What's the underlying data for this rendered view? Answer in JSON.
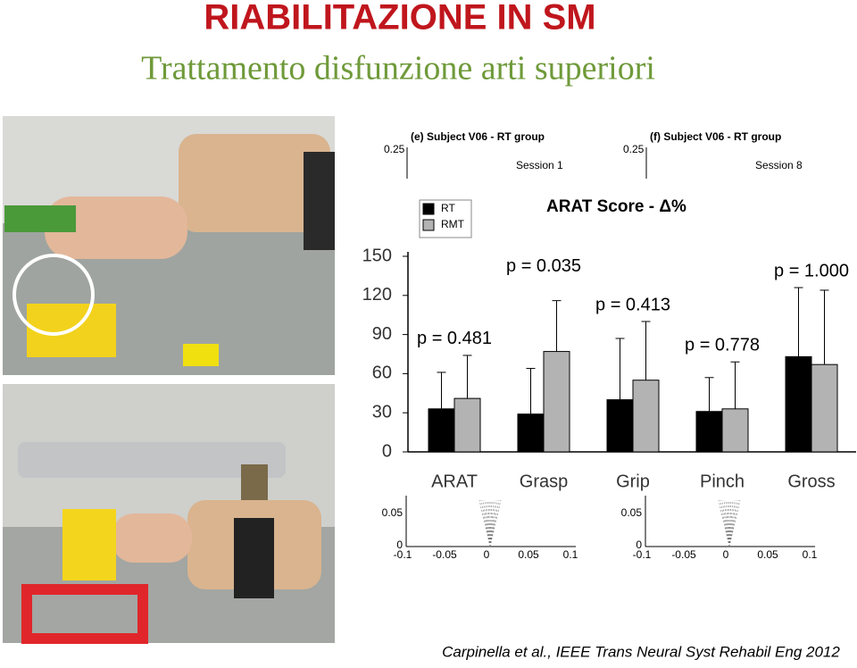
{
  "header": {
    "title": "RIABILITAZIONE IN SM",
    "subtitle": "Trattamento disfunzione arti superiori"
  },
  "background_plots": [
    {
      "title": "(e) Subject V06 - RT group",
      "label": "Session 1",
      "ytick": "0.25"
    },
    {
      "title": "(f) Subject V06 - RT group",
      "label": "Session 8",
      "ytick": "0.25"
    }
  ],
  "inset_axes": [
    {
      "yticks": [
        "0.05",
        "0"
      ],
      "xticks": [
        "-0.1",
        "-0.05",
        "0",
        "0.05",
        "0.1"
      ]
    },
    {
      "yticks": [
        "0.05",
        "0"
      ],
      "xticks": [
        "-0.1",
        "-0.05",
        "0",
        "0.05",
        "0.1"
      ]
    }
  ],
  "chart_data": {
    "type": "bar",
    "title": "ARAT Score - Δ%",
    "categories": [
      "ARAT",
      "Grasp",
      "Grip",
      "Pinch",
      "Gross"
    ],
    "series": [
      {
        "name": "RT",
        "color": "#000000",
        "values": [
          33,
          29,
          40,
          31,
          73
        ],
        "errors": [
          28,
          35,
          47,
          26,
          53
        ]
      },
      {
        "name": "RMT",
        "color": "#b3b3b3",
        "values": [
          41,
          77,
          55,
          33,
          67
        ],
        "errors": [
          33,
          39,
          45,
          36,
          57
        ]
      }
    ],
    "annotations": [
      "p = 0.481",
      "p = 0.035",
      "p = 0.413",
      "p = 0.778",
      "p = 1.000"
    ],
    "ylim": [
      0,
      150
    ],
    "yticks": [
      0,
      30,
      60,
      90,
      120,
      150
    ],
    "legend": "upper left"
  },
  "citation": "Carpinella et al., IEEE Trans Neural Syst Rehabil Eng 2012"
}
